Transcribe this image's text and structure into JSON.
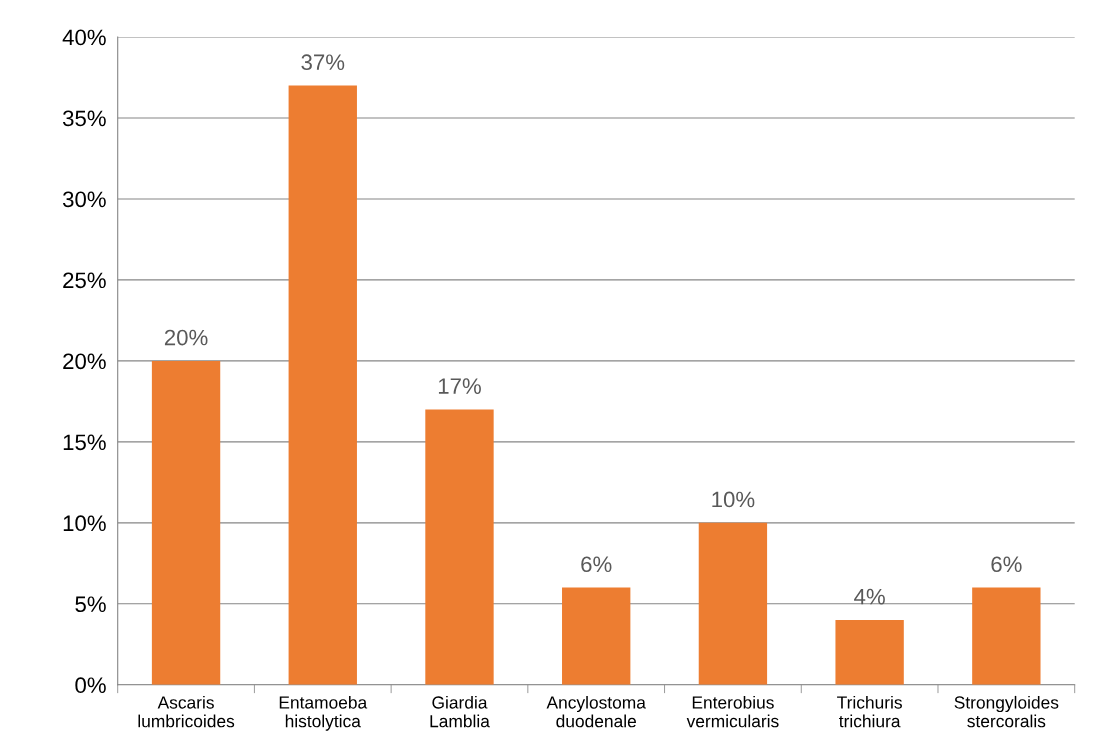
{
  "chart_data": {
    "type": "bar",
    "categories": [
      "Ascaris lumbricoides",
      "Entamoeba histolytica",
      "Giardia Lamblia",
      "Ancylostoma duodenale",
      "Enterobius vermicularis",
      "Trichuris trichiura",
      "Strongyloides stercoralis"
    ],
    "values": [
      20,
      37,
      17,
      6,
      10,
      4,
      6
    ],
    "value_labels": [
      "20%",
      "37%",
      "17%",
      "6%",
      "10%",
      "4%",
      "6%"
    ],
    "color": "#ed7d31",
    "ylim": [
      0,
      40
    ],
    "yticks": [
      {
        "value": 0,
        "label": "0%"
      },
      {
        "value": 5,
        "label": "5%"
      },
      {
        "value": 10,
        "label": "10%"
      },
      {
        "value": 15,
        "label": "15%"
      },
      {
        "value": 20,
        "label": "20%"
      },
      {
        "value": 25,
        "label": "25%"
      },
      {
        "value": 30,
        "label": "30%"
      },
      {
        "value": 35,
        "label": "35%"
      },
      {
        "value": 40,
        "label": "40%"
      }
    ],
    "grid": "y",
    "legend": false
  }
}
